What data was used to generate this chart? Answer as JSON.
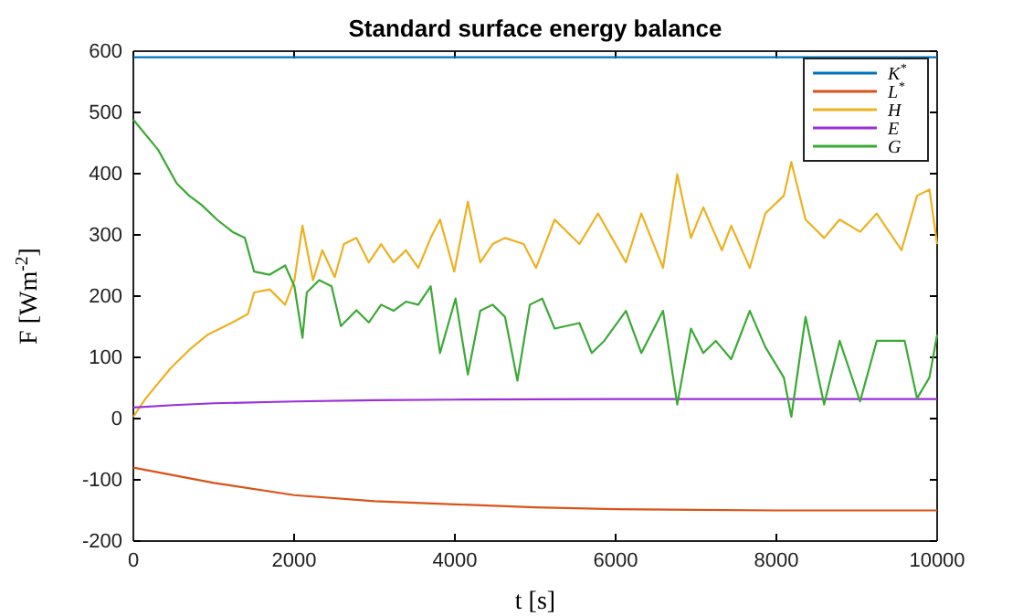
{
  "chart_data": {
    "type": "line",
    "title": "Standard surface energy balance",
    "xlabel": "t [s]",
    "ylabel": "F [Wm$^{-2}$]",
    "xlim": [
      0,
      10000
    ],
    "xticks": [
      0,
      2000,
      4000,
      6000,
      8000,
      10000
    ],
    "ylim": [
      -200,
      600
    ],
    "yticks": [
      -200,
      -100,
      0,
      100,
      200,
      300,
      400,
      500,
      600
    ],
    "grid": false,
    "legend": "top right",
    "marker": "none",
    "line_style": "solid",
    "series": [
      {
        "name": "K$^{*}$",
        "color": "#0072bd",
        "x": [
          0,
          10000
        ],
        "values": [
          590,
          590
        ]
      },
      {
        "name": "L$^{*}$",
        "color": "#d95319",
        "x": [
          0,
          1000,
          2000,
          3000,
          4000,
          5000,
          6000,
          8000,
          10000
        ],
        "values": [
          -80,
          -105,
          -125,
          -135,
          -140,
          -145,
          -148,
          -150,
          -150
        ]
      },
      {
        "name": "H",
        "color": "#edb120",
        "x": [
          0,
          154,
          462,
          694,
          925,
          1233,
          1426,
          1503,
          1696,
          1888,
          2004,
          2104,
          2235,
          2351,
          2505,
          2620,
          2775,
          2929,
          3083,
          3237,
          3391,
          3545,
          3699,
          3815,
          3992,
          4162,
          4316,
          4470,
          4624,
          4856,
          5010,
          5241,
          5550,
          5781,
          6128,
          6320,
          6590,
          6767,
          6937,
          7091,
          7322,
          7438,
          7669,
          7862,
          8093,
          8186,
          8363,
          8594,
          8787,
          9041,
          9249,
          9557,
          9750,
          9904,
          10000
        ],
        "values": [
          3,
          33,
          82,
          112,
          137,
          157,
          171,
          206,
          211,
          186,
          226,
          315,
          226,
          275,
          231,
          285,
          295,
          255,
          285,
          255,
          275,
          246,
          295,
          325,
          240,
          354,
          255,
          285,
          295,
          285,
          246,
          325,
          285,
          335,
          255,
          335,
          246,
          399,
          295,
          345,
          275,
          315,
          246,
          335,
          364,
          419,
          325,
          295,
          325,
          305,
          335,
          275,
          364,
          374,
          285
        ]
      },
      {
        "name": "E",
        "color": "#9b30d9",
        "x": [
          0,
          500,
          1000,
          2000,
          3000,
          4000,
          6000,
          10000
        ],
        "values": [
          18,
          22,
          25,
          28,
          30,
          31,
          32,
          32
        ]
      },
      {
        "name": "G",
        "color": "#3ba935",
        "x": [
          0,
          308,
          540,
          694,
          848,
          1040,
          1233,
          1387,
          1503,
          1696,
          1888,
          2004,
          2104,
          2158,
          2312,
          2466,
          2582,
          2775,
          2929,
          3083,
          3237,
          3391,
          3545,
          3699,
          3815,
          4008,
          4162,
          4316,
          4470,
          4624,
          4778,
          4933,
          5087,
          5241,
          5550,
          5704,
          5858,
          6128,
          6320,
          6590,
          6767,
          6937,
          7091,
          7245,
          7438,
          7669,
          7862,
          8093,
          8186,
          8363,
          8594,
          8787,
          9041,
          9249,
          9596,
          9750,
          9904,
          10000
        ],
        "values": [
          488,
          439,
          384,
          364,
          349,
          325,
          305,
          295,
          240,
          235,
          250,
          216,
          132,
          206,
          226,
          216,
          151,
          177,
          157,
          186,
          176,
          191,
          186,
          216,
          107,
          196,
          72,
          176,
          186,
          166,
          62,
          186,
          196,
          147,
          156,
          107,
          127,
          176,
          107,
          176,
          23,
          147,
          107,
          127,
          97,
          176,
          117,
          67,
          3,
          166,
          23,
          127,
          28,
          127,
          127,
          33,
          67,
          137
        ]
      }
    ]
  }
}
